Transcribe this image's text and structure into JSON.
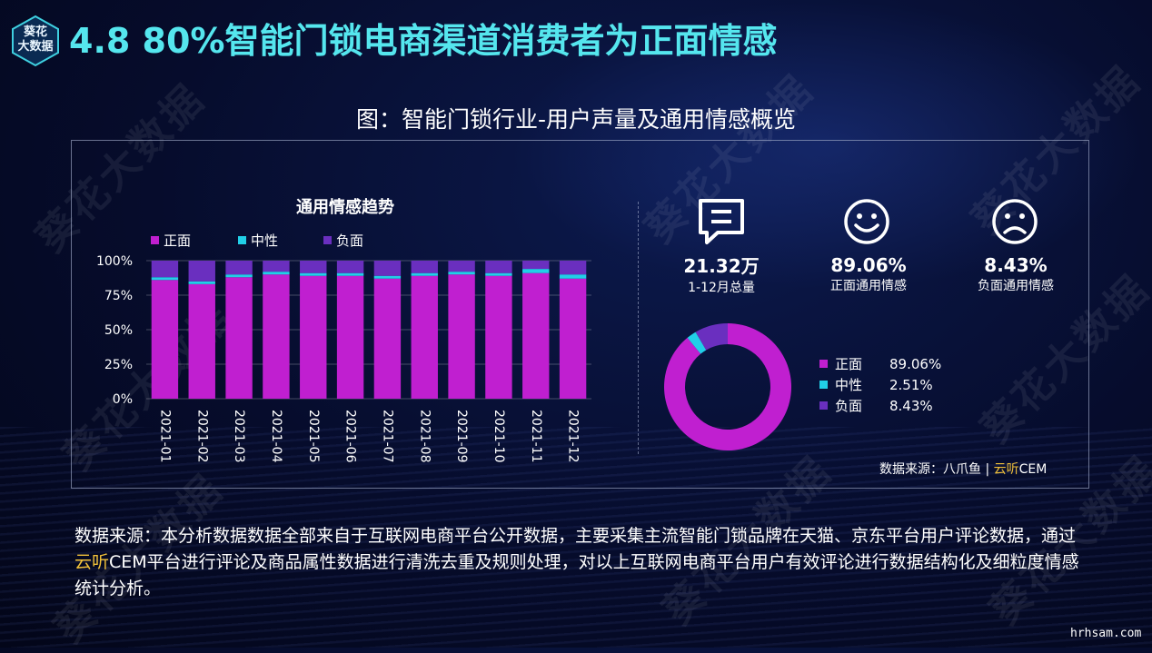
{
  "header": {
    "logo_text_line1": "葵花",
    "logo_text_line2": "大数据",
    "title": "4.8 80%智能门锁电商渠道消费者为正面情感"
  },
  "figure": {
    "title": "图：智能门锁行业-用户声量及通用情感概览"
  },
  "watermark": "葵花大数据",
  "colors": {
    "positive": "#c01fd0",
    "neutral": "#21cfe8",
    "negative": "#6a2fbf",
    "title_accent": "#55e6ee",
    "source_highlight": "#f0c03a"
  },
  "chart_data": [
    {
      "type": "bar",
      "stacked": true,
      "title": "通用情感趋势",
      "legend_position": "top-left",
      "categories": [
        "2021-01",
        "2021-02",
        "2021-03",
        "2021-04",
        "2021-05",
        "2021-06",
        "2021-07",
        "2021-08",
        "2021-09",
        "2021-10",
        "2021-11",
        "2021-12"
      ],
      "series": [
        {
          "name": "正面",
          "values": [
            86,
            83,
            88,
            90,
            89,
            89,
            87,
            89,
            90,
            89,
            91,
            87
          ]
        },
        {
          "name": "中性",
          "values": [
            2,
            2,
            2,
            2,
            2,
            2,
            2,
            2,
            2,
            2,
            3,
            3
          ]
        },
        {
          "name": "负面",
          "values": [
            12,
            15,
            10,
            8,
            9,
            9,
            11,
            9,
            8,
            9,
            6,
            10
          ]
        }
      ],
      "ylim": [
        0,
        100
      ],
      "yticks": [
        "0%",
        "25%",
        "50%",
        "75%",
        "100%"
      ],
      "grid": true
    },
    {
      "type": "pie",
      "donut": true,
      "legend_position": "right",
      "slices": [
        {
          "name": "正面",
          "value": 89.06,
          "label": "89.06%"
        },
        {
          "name": "中性",
          "value": 2.51,
          "label": "2.51%"
        },
        {
          "name": "负面",
          "value": 8.43,
          "label": "8.43%"
        }
      ]
    }
  ],
  "kpis": [
    {
      "icon": "comment-icon",
      "value": "21.32万",
      "label": "1-12月总量"
    },
    {
      "icon": "smile-icon",
      "value": "89.06%",
      "label": "正面通用情感"
    },
    {
      "icon": "frown-icon",
      "value": "8.43%",
      "label": "负面通用情感"
    }
  ],
  "source_small": {
    "prefix": "数据来源：八爪鱼 | ",
    "highlight": "云听",
    "suffix": "CEM"
  },
  "footer": {
    "part1": "数据来源：本分析数据数据全部来自于互联网电商平台公开数据，主要采集主流智能门锁品牌在天猫、京东平台用户评论数据，通过",
    "highlight": "云听",
    "part2": "CEM平台进行评论及商品属性数据进行清洗去重及规则处理，对以上互联网电商平台用户有效评论进行数据结构化及细粒度情感统计分析。"
  },
  "site": "hrhsam.com"
}
